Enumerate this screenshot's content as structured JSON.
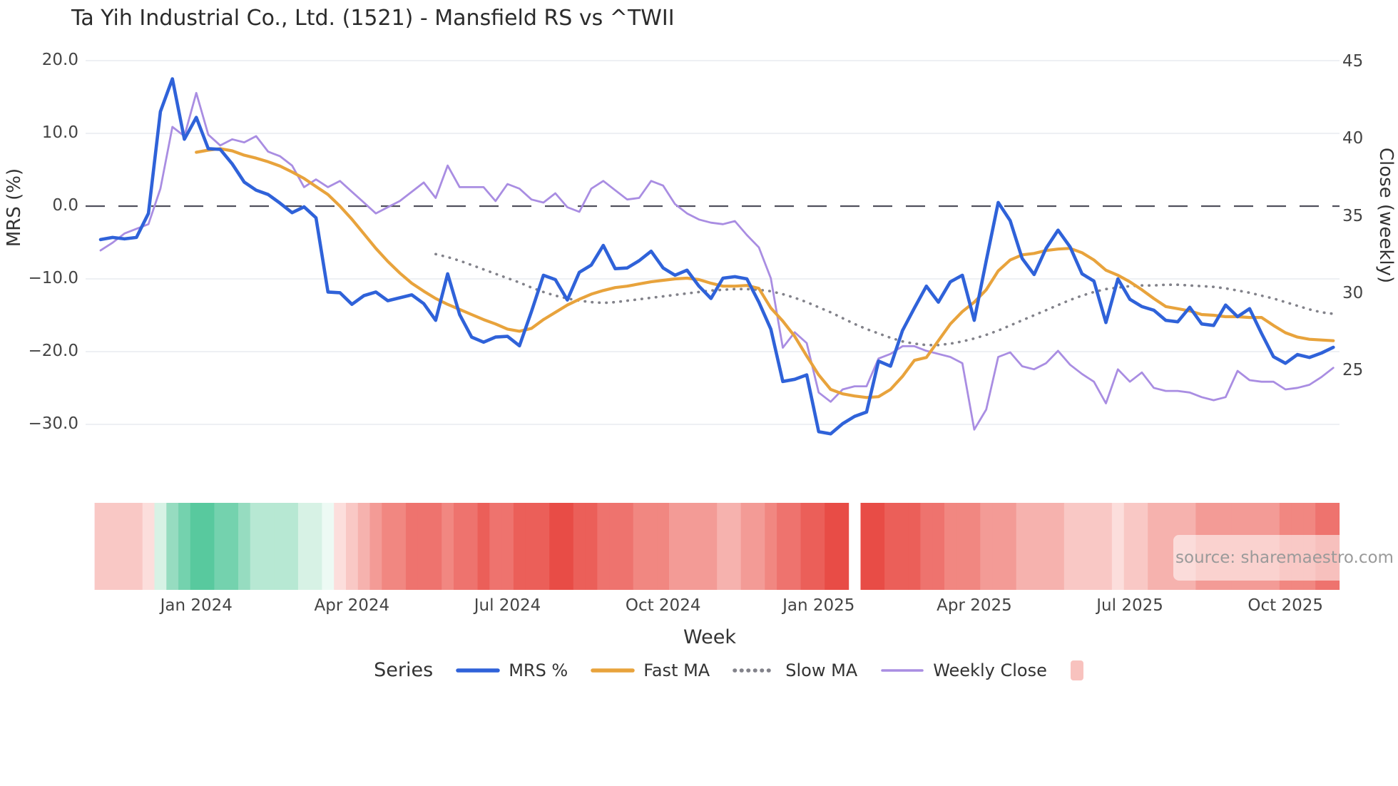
{
  "watermark": {
    "text": "source: sharemaestro.com"
  },
  "legend": {
    "title": "Series",
    "items": [
      {
        "label": "MRS %",
        "swatch": "line",
        "color": "#2f62d9"
      },
      {
        "label": "Fast MA",
        "swatch": "line",
        "color": "#e8a33c"
      },
      {
        "label": "Slow MA",
        "swatch": "dotted",
        "color": "#82828a"
      },
      {
        "label": "Weekly Close",
        "swatch": "thin-line",
        "color": "#a98de2"
      },
      {
        "label": "",
        "swatch": "square",
        "color": "#f8c2be"
      }
    ]
  },
  "chart_data": {
    "type": "line",
    "title": "Ta Yih Industrial Co., Ltd. (1521) - Mansfield RS vs ^TWII",
    "xlabel": "Week",
    "ylabel_left": "MRS (%)",
    "ylabel_right": "Close (weekly)",
    "x_unit": "week_index",
    "n_weeks": 104,
    "grid": true,
    "zero_line": true,
    "ylim_left": [
      -35.5,
      22.5
    ],
    "ylim_right": [
      19.5,
      46.3
    ],
    "left_ticks": [
      {
        "label": "20.0",
        "v": 20
      },
      {
        "label": "10.0",
        "v": 10
      },
      {
        "label": "0.0",
        "v": 0
      },
      {
        "label": "−10.0",
        "v": -10
      },
      {
        "label": "−20.0",
        "v": -20
      },
      {
        "label": "−30.0",
        "v": -30
      }
    ],
    "right_ticks": [
      {
        "label": "45",
        "v": 45
      },
      {
        "label": "40",
        "v": 40
      },
      {
        "label": "35",
        "v": 35
      },
      {
        "label": "30",
        "v": 30
      },
      {
        "label": "25",
        "v": 25
      }
    ],
    "x_ticks": [
      {
        "label": "Jan 2024",
        "week": 8
      },
      {
        "label": "Apr 2024",
        "week": 21
      },
      {
        "label": "Jul 2024",
        "week": 34
      },
      {
        "label": "Oct 2024",
        "week": 47
      },
      {
        "label": "Jan 2025",
        "week": 60
      },
      {
        "label": "Apr 2025",
        "week": 73
      },
      {
        "label": "Jul 2025",
        "week": 86
      },
      {
        "label": "Oct 2025",
        "week": 99
      }
    ],
    "series": [
      {
        "name": "Slow MA",
        "axis": "left",
        "color": "#82828a",
        "width": 3.6,
        "dash": "dot",
        "values": [
          null,
          null,
          null,
          null,
          null,
          null,
          null,
          null,
          null,
          null,
          null,
          null,
          null,
          null,
          null,
          null,
          null,
          null,
          null,
          null,
          null,
          null,
          null,
          null,
          null,
          null,
          null,
          null,
          -6.6,
          -7.0,
          -7.5,
          -8.1,
          -8.7,
          -9.3,
          -9.9,
          -10.5,
          -11.2,
          -11.8,
          -12.3,
          -12.7,
          -13.0,
          -13.2,
          -13.3,
          -13.2,
          -13.0,
          -12.8,
          -12.6,
          -12.4,
          -12.2,
          -12.0,
          -11.8,
          -11.6,
          -11.5,
          -11.4,
          -11.4,
          -11.5,
          -11.7,
          -12.1,
          -12.6,
          -13.2,
          -13.9,
          -14.6,
          -15.4,
          -16.2,
          -16.9,
          -17.5,
          -18.1,
          -18.6,
          -18.9,
          -19.1,
          -19.1,
          -18.9,
          -18.6,
          -18.2,
          -17.7,
          -17.1,
          -16.4,
          -15.7,
          -15.0,
          -14.3,
          -13.6,
          -12.9,
          -12.3,
          -11.8,
          -11.4,
          -11.2,
          -11.0,
          -10.9,
          -10.9,
          -10.8,
          -10.8,
          -10.9,
          -11.0,
          -11.1,
          -11.3,
          -11.6,
          -11.9,
          -12.3,
          -12.7,
          -13.2,
          -13.7,
          -14.2,
          -14.6,
          -14.8
        ]
      },
      {
        "name": "Weekly Close",
        "axis": "right",
        "color": "#a98de2",
        "width": 2.8,
        "values": [
          32.8,
          33.3,
          33.9,
          34.2,
          34.5,
          36.8,
          40.8,
          40.2,
          43.0,
          40.3,
          39.6,
          40.0,
          39.8,
          40.2,
          39.2,
          38.9,
          38.3,
          36.9,
          37.4,
          36.9,
          37.3,
          36.6,
          35.9,
          35.2,
          35.6,
          36.0,
          36.6,
          37.2,
          36.2,
          38.3,
          36.9,
          36.9,
          36.9,
          36.0,
          37.1,
          36.8,
          36.1,
          35.9,
          36.5,
          35.6,
          35.3,
          36.8,
          37.3,
          36.7,
          36.1,
          36.2,
          37.3,
          37.0,
          35.8,
          35.2,
          34.8,
          34.6,
          34.5,
          34.7,
          33.8,
          33.0,
          31.0,
          26.5,
          27.5,
          26.8,
          23.6,
          23.0,
          23.8,
          24.0,
          24.0,
          25.8,
          26.1,
          26.6,
          26.6,
          26.3,
          26.1,
          25.9,
          25.5,
          21.2,
          22.5,
          25.9,
          26.2,
          25.3,
          25.1,
          25.5,
          26.3,
          25.4,
          24.8,
          24.3,
          22.9,
          25.1,
          24.3,
          24.9,
          23.9,
          23.7,
          23.7,
          23.6,
          23.3,
          23.1,
          23.3,
          25.0,
          24.4,
          24.3,
          24.3,
          23.8,
          23.9,
          24.1,
          24.6,
          25.2
        ]
      },
      {
        "name": "Fast MA",
        "axis": "left",
        "color": "#e8a33c",
        "width": 4.2,
        "values": [
          null,
          null,
          null,
          null,
          null,
          null,
          null,
          null,
          7.4,
          7.7,
          7.9,
          7.6,
          7.0,
          6.6,
          6.1,
          5.5,
          4.7,
          3.8,
          2.7,
          1.6,
          0.0,
          -1.8,
          -3.8,
          -5.8,
          -7.6,
          -9.2,
          -10.6,
          -11.7,
          -12.7,
          -13.5,
          -14.2,
          -14.9,
          -15.6,
          -16.2,
          -16.9,
          -17.2,
          -16.8,
          -15.6,
          -14.6,
          -13.6,
          -12.8,
          -12.1,
          -11.6,
          -11.2,
          -11.0,
          -10.7,
          -10.4,
          -10.2,
          -10.0,
          -9.9,
          -10.1,
          -10.6,
          -11.0,
          -11.0,
          -10.9,
          -11.3,
          -14.0,
          -15.8,
          -17.9,
          -20.6,
          -23.2,
          -25.2,
          -25.8,
          -26.1,
          -26.3,
          -26.2,
          -25.2,
          -23.4,
          -21.2,
          -20.8,
          -18.5,
          -16.2,
          -14.5,
          -13.2,
          -11.5,
          -8.9,
          -7.4,
          -6.7,
          -6.5,
          -6.1,
          -5.9,
          -5.8,
          -6.4,
          -7.4,
          -8.8,
          -9.5,
          -10.4,
          -11.5,
          -12.7,
          -13.8,
          -14.1,
          -14.4,
          -14.9,
          -15.0,
          -15.2,
          -15.2,
          -15.3,
          -15.3,
          -16.4,
          -17.4,
          -18.0,
          -18.3,
          -18.4,
          -18.5
        ]
      },
      {
        "name": "MRS %",
        "axis": "left",
        "color": "#2f62d9",
        "width": 4.6,
        "values": [
          -4.6,
          -4.3,
          -4.5,
          -4.3,
          -1.0,
          13.0,
          17.5,
          9.2,
          12.2,
          7.9,
          7.8,
          5.8,
          3.3,
          2.2,
          1.6,
          0.4,
          -0.9,
          -0.1,
          -1.6,
          -11.8,
          -11.9,
          -13.5,
          -12.3,
          -11.8,
          -13.0,
          -12.6,
          -12.2,
          -13.4,
          -15.7,
          -9.3,
          -14.9,
          -18.0,
          -18.7,
          -18.0,
          -17.9,
          -19.2,
          -14.5,
          -9.5,
          -10.1,
          -12.9,
          -9.1,
          -8.1,
          -5.4,
          -8.6,
          -8.5,
          -7.5,
          -6.2,
          -8.5,
          -9.5,
          -8.8,
          -11.0,
          -12.7,
          -9.9,
          -9.7,
          -10.0,
          -13.2,
          -16.9,
          -24.1,
          -23.8,
          -23.2,
          -31.0,
          -31.3,
          -29.9,
          -28.9,
          -28.3,
          -21.3,
          -22.0,
          -17.1,
          -14.0,
          -11.0,
          -13.2,
          -10.4,
          -9.5,
          -15.7,
          -7.5,
          0.5,
          -2.0,
          -7.2,
          -9.4,
          -5.8,
          -3.3,
          -5.6,
          -9.3,
          -10.3,
          -16.0,
          -10.0,
          -12.8,
          -13.8,
          -14.3,
          -15.7,
          -15.9,
          -13.9,
          -16.2,
          -16.4,
          -13.6,
          -15.2,
          -14.1,
          -17.5,
          -20.7,
          -21.6,
          -20.4,
          -20.8,
          -20.2,
          -19.4
        ]
      }
    ],
    "heatmap": {
      "description": "weekly color strip below plot; null = missing week",
      "colors": [
        "#f9c8c5",
        "#f9c8c5",
        "#f9c8c5",
        "#f9c8c5",
        "#fcdedc",
        "#d7f2e5",
        "#96dcc0",
        "#74d2ae",
        "#58c99e",
        "#58c99e",
        "#74d2ae",
        "#74d2ae",
        "#96dcc0",
        "#b7e8d3",
        "#b7e8d3",
        "#b7e8d3",
        "#b7e8d3",
        "#d7f2e5",
        "#d7f2e5",
        "#edfaf4",
        "#fcdedc",
        "#f9c8c5",
        "#f6b2ae",
        "#f39b96",
        "#f18781",
        "#f18781",
        "#ee736e",
        "#ee736e",
        "#ee736e",
        "#f18781",
        "#ee736e",
        "#ee736e",
        "#eb5f59",
        "#ee736e",
        "#ee736e",
        "#eb5f59",
        "#eb5f59",
        "#eb5f59",
        "#e84c46",
        "#e84c46",
        "#eb5f59",
        "#eb5f59",
        "#ee736e",
        "#ee736e",
        "#ee736e",
        "#f18781",
        "#f18781",
        "#f18781",
        "#f39b96",
        "#f39b96",
        "#f39b96",
        "#f39b96",
        "#f6b2ae",
        "#f6b2ae",
        "#f39b96",
        "#f39b96",
        "#f18781",
        "#ee736e",
        "#ee736e",
        "#eb5f59",
        "#eb5f59",
        "#e84c46",
        "#e84c46",
        null,
        "#e84c46",
        "#e84c46",
        "#eb5f59",
        "#eb5f59",
        "#eb5f59",
        "#ee736e",
        "#ee736e",
        "#f18781",
        "#f18781",
        "#f18781",
        "#f39b96",
        "#f39b96",
        "#f39b96",
        "#f6b2ae",
        "#f6b2ae",
        "#f6b2ae",
        "#f6b2ae",
        "#f9c8c5",
        "#f9c8c5",
        "#f9c8c5",
        "#f9c8c5",
        "#fcdedc",
        "#f9c8c5",
        "#f9c8c5",
        "#f6b2ae",
        "#f6b2ae",
        "#f6b2ae",
        "#f6b2ae",
        "#f39b96",
        "#f39b96",
        "#f39b96",
        "#f39b96",
        "#f39b96",
        "#f39b96",
        "#f39b96",
        "#f18781",
        "#f18781",
        "#f18781",
        "#ee736e",
        "#ee736e"
      ]
    }
  }
}
